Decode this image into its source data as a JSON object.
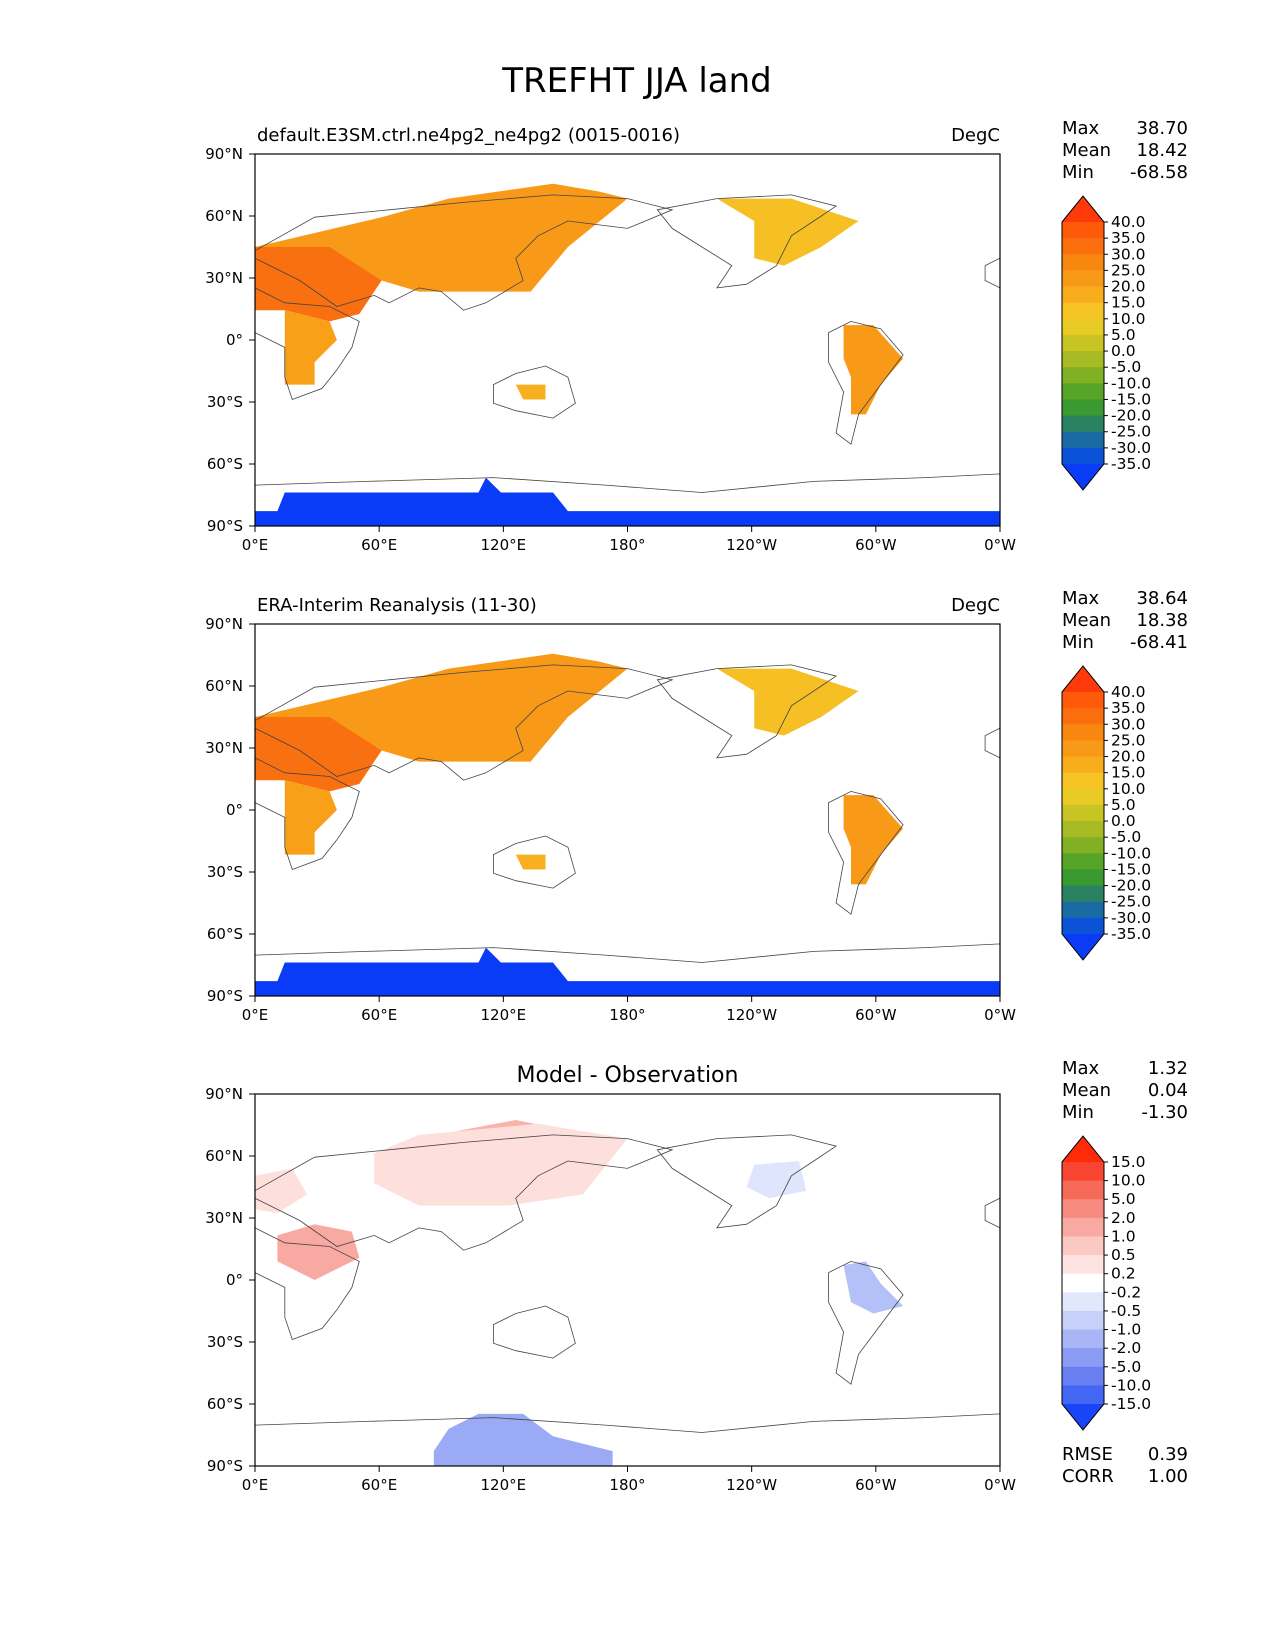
{
  "figure": {
    "title": "TREFHT JJA land"
  },
  "axes": {
    "lat_ticks": [
      "90°N",
      "60°N",
      "30°N",
      "0°",
      "30°S",
      "60°S",
      "90°S"
    ],
    "lon_ticks": [
      "0°E",
      "60°E",
      "120°E",
      "180°",
      "120°W",
      "60°W",
      "0°W"
    ]
  },
  "panels": [
    {
      "id": "test",
      "title_left": "default.E3SM.ctrl.ne4pg2_ne4pg2 (0015-0016)",
      "title_center": "",
      "units": "DegC",
      "stats": [
        {
          "label": "Max",
          "value": "38.70"
        },
        {
          "label": "Mean",
          "value": "18.42"
        },
        {
          "label": "Min",
          "value": "-68.58"
        }
      ],
      "colorbar_levels": [
        "40.0",
        "35.0",
        "30.0",
        "25.0",
        "20.0",
        "15.0",
        "10.0",
        "5.0",
        "0.0",
        "-5.0",
        "-10.0",
        "-15.0",
        "-20.0",
        "-25.0",
        "-30.0",
        "-35.0"
      ],
      "colorbar_colors": [
        "#ff3a0a",
        "#ff5a0a",
        "#fb6e0e",
        "#f88710",
        "#f89a18",
        "#f8ad1c",
        "#f6c324",
        "#e8cb24",
        "#c8c424",
        "#a8bb24",
        "#82b024",
        "#56a428",
        "#3a9a30",
        "#2a8260",
        "#1a6aa4",
        "#0a52d8",
        "#0a3cf8"
      ],
      "regions": [
        {
          "name": "eurasia",
          "color": "#f89a18"
        },
        {
          "name": "north-africa-mideast",
          "color": "#f87010"
        },
        {
          "name": "africa-south",
          "color": "#f8a018"
        },
        {
          "name": "north-america",
          "color": "#f6c024"
        },
        {
          "name": "south-america",
          "color": "#f89a18"
        },
        {
          "name": "australia",
          "color": "#f8b020"
        },
        {
          "name": "antarctica",
          "color": "#0a3cf8"
        }
      ]
    },
    {
      "id": "reference",
      "title_left": "ERA-Interim Reanalysis (11-30)",
      "title_center": "",
      "units": "DegC",
      "stats": [
        {
          "label": "Max",
          "value": "38.64"
        },
        {
          "label": "Mean",
          "value": "18.38"
        },
        {
          "label": "Min",
          "value": "-68.41"
        }
      ],
      "colorbar_levels": [
        "40.0",
        "35.0",
        "30.0",
        "25.0",
        "20.0",
        "15.0",
        "10.0",
        "5.0",
        "0.0",
        "-5.0",
        "-10.0",
        "-15.0",
        "-20.0",
        "-25.0",
        "-30.0",
        "-35.0"
      ],
      "colorbar_colors": [
        "#ff3a0a",
        "#ff5a0a",
        "#fb6e0e",
        "#f88710",
        "#f89a18",
        "#f8ad1c",
        "#f6c324",
        "#e8cb24",
        "#c8c424",
        "#a8bb24",
        "#82b024",
        "#56a428",
        "#3a9a30",
        "#2a8260",
        "#1a6aa4",
        "#0a52d8",
        "#0a3cf8"
      ],
      "regions": [
        {
          "name": "eurasia",
          "color": "#f89a18"
        },
        {
          "name": "north-africa-mideast",
          "color": "#f87010"
        },
        {
          "name": "africa-south",
          "color": "#f8a018"
        },
        {
          "name": "north-america",
          "color": "#f6c024"
        },
        {
          "name": "south-america",
          "color": "#f89a18"
        },
        {
          "name": "australia",
          "color": "#f8b020"
        },
        {
          "name": "antarctica",
          "color": "#0a3cf8"
        }
      ]
    },
    {
      "id": "difference",
      "title_left": "",
      "title_center": "Model - Observation",
      "units": "",
      "stats": [
        {
          "label": "Max",
          "value": "1.32"
        },
        {
          "label": "Mean",
          "value": "0.04"
        },
        {
          "label": "Min",
          "value": "-1.30"
        }
      ],
      "bottom_stats": [
        {
          "label": "RMSE",
          "value": "0.39"
        },
        {
          "label": "CORR",
          "value": "1.00"
        }
      ],
      "colorbar_levels": [
        "15.0",
        "10.0",
        "5.0",
        "2.0",
        "1.0",
        "0.5",
        "0.2",
        "-0.2",
        "-0.5",
        "-1.0",
        "-2.0",
        "-5.0",
        "-10.0",
        "-15.0"
      ],
      "colorbar_colors": [
        "#ff2a08",
        "#f84430",
        "#f86a58",
        "#f88a80",
        "#f8aaa2",
        "#fcc8c2",
        "#fde4e0",
        "#ffffff",
        "#e2e8fc",
        "#c6d0f8",
        "#a8b6f6",
        "#8a9cf4",
        "#6a80f2",
        "#4466f4",
        "#1a44f8"
      ],
      "regions": [
        {
          "name": "siberia-warm",
          "color": "#f8b4aa"
        },
        {
          "name": "eurasia-warm",
          "color": "#fde0dc"
        },
        {
          "name": "sahara-warm",
          "color": "#f8aaa2"
        },
        {
          "name": "europe-warm",
          "color": "#fde0dc"
        },
        {
          "name": "north-america-cool",
          "color": "#dfe5fc"
        },
        {
          "name": "south-america-cool",
          "color": "#b4c0f8"
        },
        {
          "name": "antarctica-cool",
          "color": "#9aaaf4"
        }
      ]
    }
  ]
}
